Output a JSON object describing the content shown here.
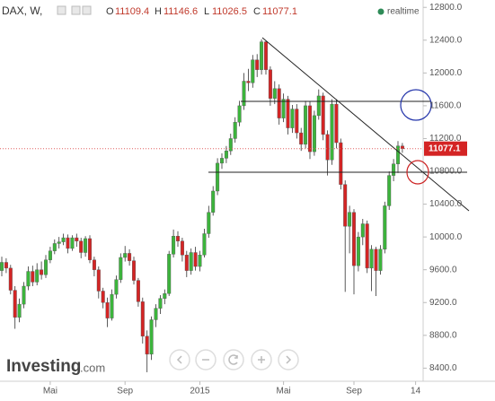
{
  "chart_data": {
    "type": "candlestick",
    "symbol": "DAX, W,",
    "ohlc_labels": [
      "O",
      "H",
      "L",
      "C"
    ],
    "status": "realtime",
    "brand": "Investing",
    "brand_suffix": ".com",
    "up_color": "#3cb43c",
    "down_color": "#d42424",
    "categories": [
      null,
      null,
      null,
      null,
      null,
      null,
      null,
      null,
      null,
      null,
      null,
      "Mai",
      null,
      null,
      null,
      null,
      null,
      null,
      null,
      null,
      null,
      null,
      null,
      null,
      null,
      null,
      null,
      null,
      "Sep",
      null,
      null,
      null,
      null,
      null,
      null,
      null,
      null,
      null,
      null,
      null,
      null,
      null,
      null,
      null,
      null,
      "2015",
      null,
      null,
      null,
      null,
      null,
      null,
      null,
      null,
      null,
      null,
      null,
      null,
      null,
      null,
      null,
      null,
      null,
      null,
      "Mai",
      null,
      null,
      null,
      null,
      null,
      null,
      null,
      null,
      null,
      null,
      null,
      null,
      null,
      null,
      null,
      "Sep",
      null,
      null,
      null,
      null,
      null,
      null,
      null,
      null,
      null,
      null,
      null,
      null,
      null,
      "14"
    ],
    "open": [
      9590,
      9690,
      9620,
      9350,
      9020,
      9180,
      9400,
      9580,
      9450,
      9600,
      9540,
      9720,
      9830,
      9920,
      9940,
      9990,
      9860,
      9990,
      9950,
      9810,
      9980,
      9720,
      9600,
      9340,
      9200,
      9010,
      9300,
      9480,
      9750,
      9800,
      9710,
      9470,
      9210,
      8790,
      8570,
      8990,
      9130,
      9250,
      9310,
      9790,
      10010,
      9950,
      9780,
      9590,
      9810,
      9640,
      9780,
      10040,
      10300,
      10560,
      10900,
      10960,
      11050,
      11200,
      11400,
      11600,
      11900,
      11880,
      12160,
      12040,
      12380,
      12040,
      11690,
      11810,
      11450,
      11680,
      11330,
      11560,
      11270,
      11130,
      11600,
      11040,
      11480,
      11720,
      11250,
      10940,
      11620,
      11150,
      10640,
      10130,
      10300,
      9650,
      10000,
      10160,
      9620,
      9850,
      9590,
      9850,
      10380,
      10750,
      10890,
      11109.4,
      null,
      null,
      null
    ],
    "high": [
      9760,
      9740,
      9660,
      9400,
      9250,
      9450,
      9640,
      9650,
      9680,
      9700,
      9780,
      9880,
      9970,
      10000,
      10040,
      10030,
      10020,
      10040,
      9990,
      10010,
      10020,
      9760,
      9640,
      9380,
      9260,
      9360,
      9530,
      9800,
      9890,
      9850,
      9760,
      9500,
      9260,
      8860,
      9030,
      9180,
      9290,
      9360,
      9830,
      10090,
      10070,
      9990,
      9830,
      9860,
      9880,
      9830,
      10100,
      10380,
      10620,
      10960,
      11020,
      11110,
      11260,
      11460,
      11660,
      12000,
      12050,
      12220,
      12230,
      12410,
      12390,
      12080,
      11900,
      11860,
      11750,
      11720,
      11610,
      11620,
      11330,
      11660,
      11650,
      11540,
      11800,
      11760,
      11300,
      11680,
      11680,
      11200,
      10690,
      10380,
      10340,
      10060,
      10220,
      10200,
      9900,
      9880,
      9900,
      10430,
      10800,
      10950,
      11170,
      11146.6,
      null,
      null,
      null
    ],
    "low": [
      9520,
      9560,
      9300,
      8880,
      8960,
      9130,
      9350,
      9400,
      9410,
      9480,
      9500,
      9680,
      9790,
      9860,
      9900,
      9800,
      9830,
      9880,
      9740,
      9760,
      9680,
      9520,
      9250,
      9130,
      8900,
      8980,
      9250,
      9440,
      9700,
      9650,
      9420,
      9150,
      8700,
      8350,
      8500,
      8900,
      9060,
      9180,
      9280,
      9750,
      9880,
      9700,
      9510,
      9540,
      9590,
      9580,
      9750,
      9990,
      10260,
      10510,
      10830,
      10900,
      11000,
      11150,
      11350,
      11550,
      11780,
      11820,
      11950,
      11980,
      11980,
      11600,
      11620,
      11370,
      11400,
      11250,
      11270,
      11200,
      11050,
      11080,
      10950,
      10990,
      11430,
      11180,
      10750,
      10880,
      11080,
      10580,
      9330,
      9800,
      9300,
      9580,
      9900,
      9560,
      9340,
      9280,
      9540,
      9800,
      10330,
      10680,
      10780,
      11026.5,
      null,
      null,
      null
    ],
    "close": [
      9690,
      9620,
      9350,
      9020,
      9180,
      9400,
      9580,
      9450,
      9600,
      9540,
      9720,
      9830,
      9920,
      9940,
      9990,
      9860,
      9990,
      9950,
      9810,
      9980,
      9720,
      9600,
      9340,
      9200,
      9010,
      9300,
      9480,
      9750,
      9800,
      9710,
      9470,
      9210,
      8790,
      8570,
      8990,
      9130,
      9250,
      9310,
      9790,
      10010,
      9950,
      9780,
      9590,
      9810,
      9640,
      9780,
      10040,
      10300,
      10560,
      10900,
      10960,
      11050,
      11200,
      11400,
      11600,
      11900,
      11880,
      12160,
      12040,
      12380,
      12040,
      11690,
      11810,
      11450,
      11680,
      11330,
      11560,
      11270,
      11130,
      11600,
      11040,
      11480,
      11720,
      11250,
      10940,
      11620,
      11150,
      10640,
      10130,
      10300,
      9650,
      10000,
      10160,
      9620,
      9850,
      9590,
      9850,
      10380,
      10750,
      10890,
      11110,
      11077.1,
      null,
      null,
      null
    ],
    "ylim": [
      8240,
      12890
    ],
    "yticks": [
      {
        "value": 12800,
        "label": "12800.0"
      },
      {
        "value": 12400,
        "label": "12400.0"
      },
      {
        "value": 12000,
        "label": "12000.0"
      },
      {
        "value": 11600,
        "label": "11600.0"
      },
      {
        "value": 11200,
        "label": "11200.0"
      },
      {
        "value": 10800,
        "label": "10800.0"
      },
      {
        "value": 10400,
        "label": "10400.0"
      },
      {
        "value": 10000,
        "label": "10000.0"
      },
      {
        "value": 9600,
        "label": "9600.0"
      },
      {
        "value": 9200,
        "label": "9200.0"
      },
      {
        "value": 8800,
        "label": "8800.0"
      },
      {
        "value": 8400,
        "label": "8400.0"
      }
    ]
  }
}
